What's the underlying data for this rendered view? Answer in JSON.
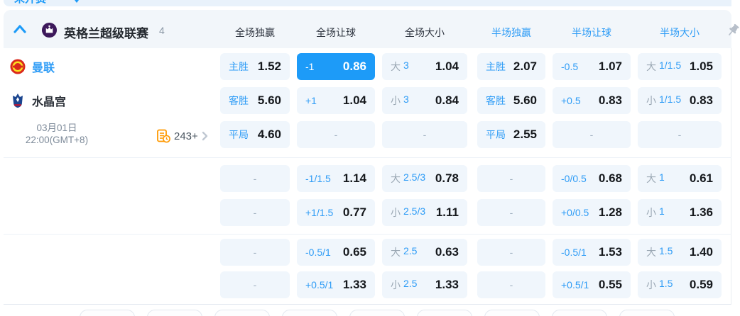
{
  "top_bar": {
    "tab_label": "未开赛"
  },
  "panel_header": {
    "league": "英格兰超级联赛",
    "count": "4",
    "columns": [
      {
        "label": "全场独赢",
        "active": false
      },
      {
        "label": "全场让球",
        "active": false
      },
      {
        "label": "全场大小",
        "active": false
      },
      {
        "label": "半场独赢",
        "active": true
      },
      {
        "label": "半场让球",
        "active": true
      },
      {
        "label": "半场大小",
        "active": true
      }
    ]
  },
  "icons": {
    "collapse": "chevron-up-icon",
    "league_logo": "premier-league-lion-icon",
    "pin": "pushpin-icon",
    "markets": "markets-list-clock-icon",
    "more": "chevron-right-icon"
  },
  "match": {
    "home_team": "曼联",
    "away_team": "水晶宫",
    "date_line1": "03月01日",
    "date_line2": "22:00(GMT+8)",
    "markets_count": "243+"
  },
  "colors": {
    "accent_blue": "#1d9bf8",
    "label_blue": "#2e9cf6",
    "cell_bg": "#f0f6fc",
    "header_bg": "#f2f6fa"
  },
  "odds": {
    "columns": [
      {
        "market": "full-time-1x2",
        "cells": [
          {
            "b": "主胜",
            "v": "1.52"
          },
          {
            "b": "客胜",
            "v": "5.60"
          },
          {
            "b": "平局",
            "v": "4.60"
          },
          {
            "dash": true
          },
          {
            "dash": true
          },
          {
            "dash": true
          },
          {
            "dash": true
          }
        ]
      },
      {
        "market": "full-time-handicap",
        "cells": [
          {
            "b": "-1",
            "v": "0.86",
            "sel": true
          },
          {
            "b": "+1",
            "v": "1.04"
          },
          {
            "dash": true
          },
          {
            "b": "-1/1.5",
            "v": "1.14"
          },
          {
            "b": "+1/1.5",
            "v": "0.77"
          },
          {
            "b": "-0.5/1",
            "v": "0.65"
          },
          {
            "b": "+0.5/1",
            "v": "1.33"
          }
        ]
      },
      {
        "market": "full-time-over-under",
        "cells": [
          {
            "g": "大",
            "b": "3",
            "v": "1.04"
          },
          {
            "g": "小",
            "b": "3",
            "v": "0.84"
          },
          {
            "dash": true
          },
          {
            "g": "大",
            "b": "2.5/3",
            "v": "0.78"
          },
          {
            "g": "小",
            "b": "2.5/3",
            "v": "1.11"
          },
          {
            "g": "大",
            "b": "2.5",
            "v": "0.63"
          },
          {
            "g": "小",
            "b": "2.5",
            "v": "1.33"
          }
        ]
      },
      {
        "market": "half-time-1x2",
        "cells": [
          {
            "b": "主胜",
            "v": "2.07"
          },
          {
            "b": "客胜",
            "v": "5.60"
          },
          {
            "b": "平局",
            "v": "2.55"
          },
          {
            "dash": true
          },
          {
            "dash": true
          },
          {
            "dash": true
          },
          {
            "dash": true
          }
        ]
      },
      {
        "market": "half-time-handicap",
        "cells": [
          {
            "b": "-0.5",
            "v": "1.07"
          },
          {
            "b": "+0.5",
            "v": "0.83"
          },
          {
            "dash": true
          },
          {
            "b": "-0/0.5",
            "v": "0.68"
          },
          {
            "b": "+0/0.5",
            "v": "1.28"
          },
          {
            "b": "-0.5/1",
            "v": "1.53"
          },
          {
            "b": "+0.5/1",
            "v": "0.55"
          }
        ]
      },
      {
        "market": "half-time-over-under",
        "cells": [
          {
            "g": "大",
            "b": "1/1.5",
            "v": "1.05"
          },
          {
            "g": "小",
            "b": "1/1.5",
            "v": "0.83"
          },
          {
            "dash": true
          },
          {
            "g": "大",
            "b": "1",
            "v": "0.61"
          },
          {
            "g": "小",
            "b": "1",
            "v": "1.36"
          },
          {
            "g": "大",
            "b": "1.5",
            "v": "1.40"
          },
          {
            "g": "小",
            "b": "1.5",
            "v": "0.59"
          }
        ]
      }
    ]
  }
}
